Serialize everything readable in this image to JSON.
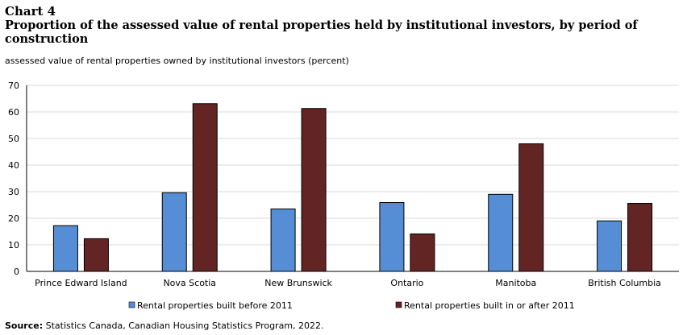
{
  "chart_label": "Chart 4",
  "chart_data": {
    "type": "bar",
    "title": "Proportion of the assessed value of rental properties held by institutional investors, by period of construction",
    "subtitle": "assessed value of rental properties owned by institutional investors (percent)",
    "categories": [
      "Prince Edward Island",
      "Nova Scotia",
      "New Brunswick",
      "Ontario",
      "Manitoba",
      "British Columbia"
    ],
    "series": [
      {
        "name": "Rental properties built before 2011",
        "color": "#558ed5",
        "values": [
          17.2,
          29.6,
          23.5,
          25.9,
          29.0,
          19.0
        ]
      },
      {
        "name": "Rental properties built in or after 2011",
        "color": "#632523",
        "values": [
          12.3,
          63.1,
          61.3,
          14.1,
          48.0,
          25.6
        ]
      }
    ],
    "ylim": [
      0,
      70
    ],
    "yticks": [
      0,
      10,
      20,
      30,
      40,
      50,
      60,
      70
    ],
    "grid": true,
    "legend": "bottom"
  },
  "source": {
    "label": "Source:",
    "text": "Statistics Canada, Canadian Housing Statistics Program, 2022."
  }
}
